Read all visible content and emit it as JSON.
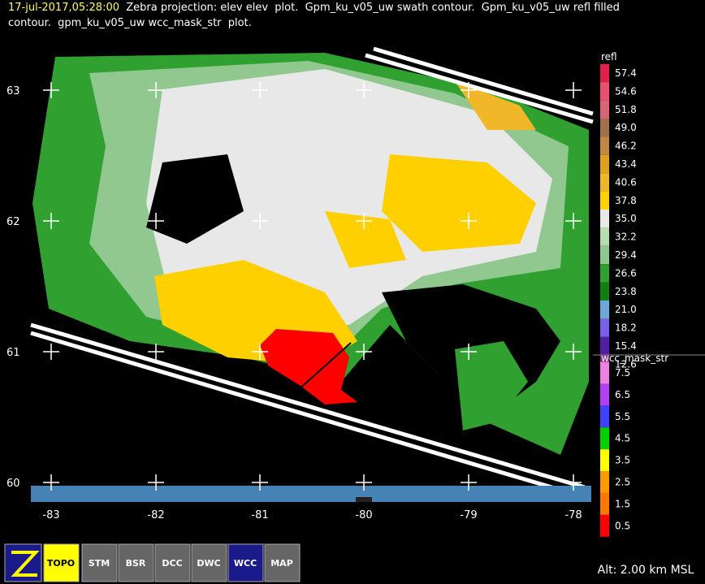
{
  "header": {
    "time": "17-jul-2017,05:28:00",
    "line1": "Zebra projection: elev elev  plot.  Gpm_ku_v05_uw swath contour.  Gpm_ku_v05_uw refl filled",
    "line2": "contour.  gpm_ku_v05_uw wcc_mask_str  plot."
  },
  "map": {
    "lat_labels": [
      "63",
      "62",
      "61",
      "60"
    ],
    "lon_labels": [
      "-83",
      "-82",
      "-81",
      "-80",
      "-79",
      "-78"
    ]
  },
  "legends": [
    {
      "title": "refl",
      "labels": [
        "57.4",
        "54.6",
        "51.8",
        "49.0",
        "46.2",
        "43.4",
        "40.6",
        "37.8",
        "35.0",
        "32.2",
        "29.4",
        "26.6",
        "23.8",
        "21.0",
        "18.2",
        "15.4",
        "12.6"
      ],
      "colors": [
        "#e0204a",
        "#e85070",
        "#d86478",
        "#a0704f",
        "#c08840",
        "#e0a020",
        "#f0b828",
        "#ffd000",
        "#e8e8e8",
        "#b8dcb0",
        "#90c890",
        "#30a030",
        "#108010",
        "#6fa8d8",
        "#7a60e8",
        "#5020a0",
        "#802880"
      ]
    },
    {
      "title": "wcc_mask_str",
      "labels": [
        "7.5",
        "6.5",
        "5.5",
        "4.5",
        "3.5",
        "2.5",
        "1.5",
        "0.5"
      ],
      "colors": [
        "#f080e0",
        "#b040f0",
        "#4040ff",
        "#00d000",
        "#ffff00",
        "#ff9900",
        "#ff7700",
        "#ff0000"
      ]
    }
  ],
  "toolbar": {
    "buttons": [
      "TOPO",
      "STM",
      "BSR",
      "DCC",
      "DWC",
      "WCC",
      "MAP"
    ]
  },
  "status": "Alt: 2.00 km MSL"
}
